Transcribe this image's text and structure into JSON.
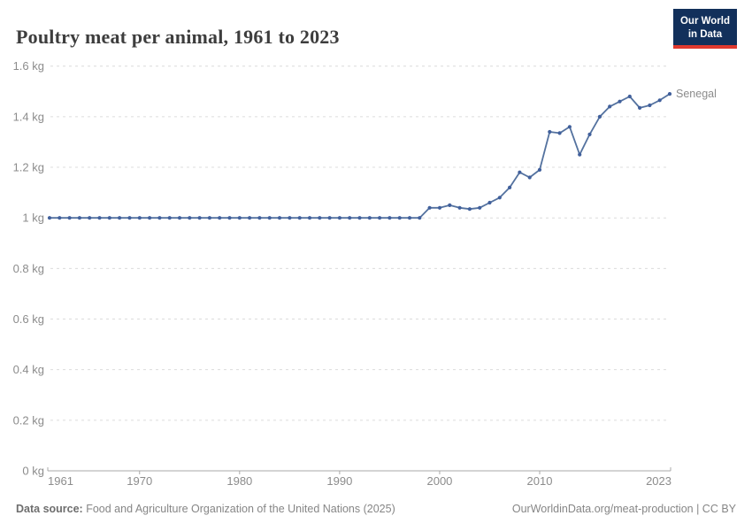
{
  "header": {
    "title": "Poultry meat per animal, 1961 to 2023",
    "logo": {
      "line1": "Our World",
      "line2": "in Data",
      "bg": "#12305b",
      "accent": "#e0392e"
    }
  },
  "chart_data": {
    "type": "line",
    "title": "Poultry meat per animal, 1961 to 2023",
    "ylabel": "",
    "xlabel": "",
    "unit": "kg",
    "ylim": [
      0,
      1.6
    ],
    "grid": "horizontal-dashed",
    "legend_position": "end-of-line",
    "x": [
      1961,
      1962,
      1963,
      1964,
      1965,
      1966,
      1967,
      1968,
      1969,
      1970,
      1971,
      1972,
      1973,
      1974,
      1975,
      1976,
      1977,
      1978,
      1979,
      1980,
      1981,
      1982,
      1983,
      1984,
      1985,
      1986,
      1987,
      1988,
      1989,
      1990,
      1991,
      1992,
      1993,
      1994,
      1995,
      1996,
      1997,
      1998,
      1999,
      2000,
      2001,
      2002,
      2003,
      2004,
      2005,
      2006,
      2007,
      2008,
      2009,
      2010,
      2011,
      2012,
      2013,
      2014,
      2015,
      2016,
      2017,
      2018,
      2019,
      2020,
      2021,
      2022,
      2023
    ],
    "series": [
      {
        "name": "Senegal",
        "color": "#54729f",
        "marker_color": "#41609c",
        "values": [
          1,
          1,
          1,
          1,
          1,
          1,
          1,
          1,
          1,
          1,
          1,
          1,
          1,
          1,
          1,
          1,
          1,
          1,
          1,
          1,
          1,
          1,
          1,
          1,
          1,
          1,
          1,
          1,
          1,
          1,
          1,
          1,
          1,
          1,
          1,
          1,
          1,
          1,
          1.04,
          1.04,
          1.05,
          1.04,
          1.035,
          1.04,
          1.06,
          1.08,
          1.12,
          1.18,
          1.16,
          1.19,
          1.34,
          1.335,
          1.36,
          1.25,
          1.33,
          1.4,
          1.44,
          1.46,
          1.48,
          1.435,
          1.445,
          1.465,
          1.49
        ]
      }
    ],
    "y_ticks": [
      0,
      0.2,
      0.4,
      0.6,
      0.8,
      1,
      1.2,
      1.4,
      1.6
    ],
    "y_tick_labels": [
      "0 kg",
      "0.2 kg",
      "0.4 kg",
      "0.6 kg",
      "0.8 kg",
      "1 kg",
      "1.2 kg",
      "1.4 kg",
      "1.6 kg"
    ],
    "x_ticks": [
      1961,
      1970,
      1980,
      1990,
      2000,
      2010,
      2023
    ],
    "x_tick_labels": [
      "1961",
      "1970",
      "1980",
      "1990",
      "2000",
      "2010",
      "2023"
    ],
    "gridline_color": "#dcdcdc",
    "axis_color": "#a8a8a8"
  },
  "footer": {
    "source_label": "Data source:",
    "source_text": "Food and Agriculture Organization of the United Nations (2025)",
    "credit": "OurWorldinData.org/meat-production | CC BY"
  }
}
